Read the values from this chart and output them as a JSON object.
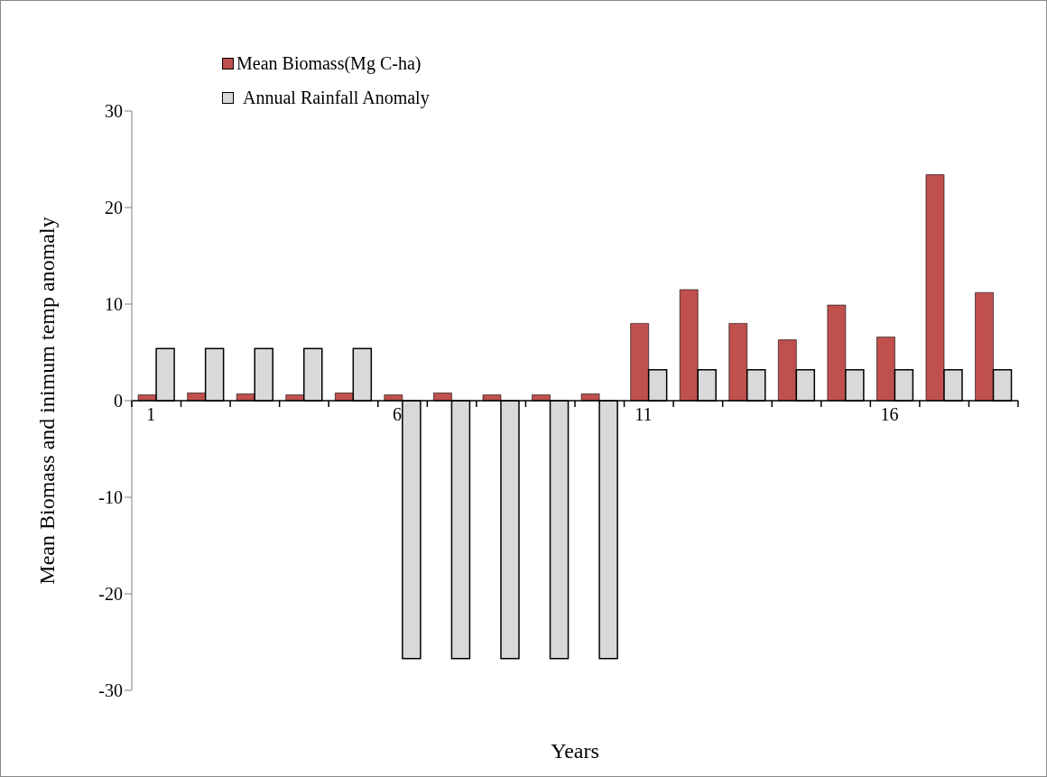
{
  "chart_data": {
    "type": "bar",
    "xlabel": "Years",
    "ylabel": "Mean Biomass and inimum temp anomaly",
    "categories": [
      "1",
      null,
      null,
      null,
      null,
      "6",
      null,
      null,
      null,
      null,
      "11",
      null,
      null,
      null,
      null,
      "16",
      null,
      null
    ],
    "series": [
      {
        "name": "Mean Biomass(Mg C-ha)",
        "color": "#c0504d",
        "values": [
          0.6,
          0.8,
          0.7,
          0.6,
          0.8,
          0.6,
          0.8,
          0.6,
          0.6,
          0.7,
          8.0,
          11.5,
          8.0,
          6.3,
          9.9,
          6.6,
          23.4,
          11.2
        ]
      },
      {
        "name": "Annual Rainfall Anomaly",
        "color": "#d9d9d9",
        "values": [
          5.4,
          5.4,
          5.4,
          5.4,
          5.4,
          -26.7,
          -26.7,
          -26.7,
          -26.7,
          -26.7,
          3.2,
          3.2,
          3.2,
          3.2,
          3.2,
          3.2,
          3.2,
          3.2
        ]
      }
    ],
    "ylim": [
      -30,
      30
    ],
    "yticks": [
      -30,
      -20,
      -10,
      0,
      10,
      20,
      30
    ],
    "grid": false,
    "legend": "top left"
  }
}
